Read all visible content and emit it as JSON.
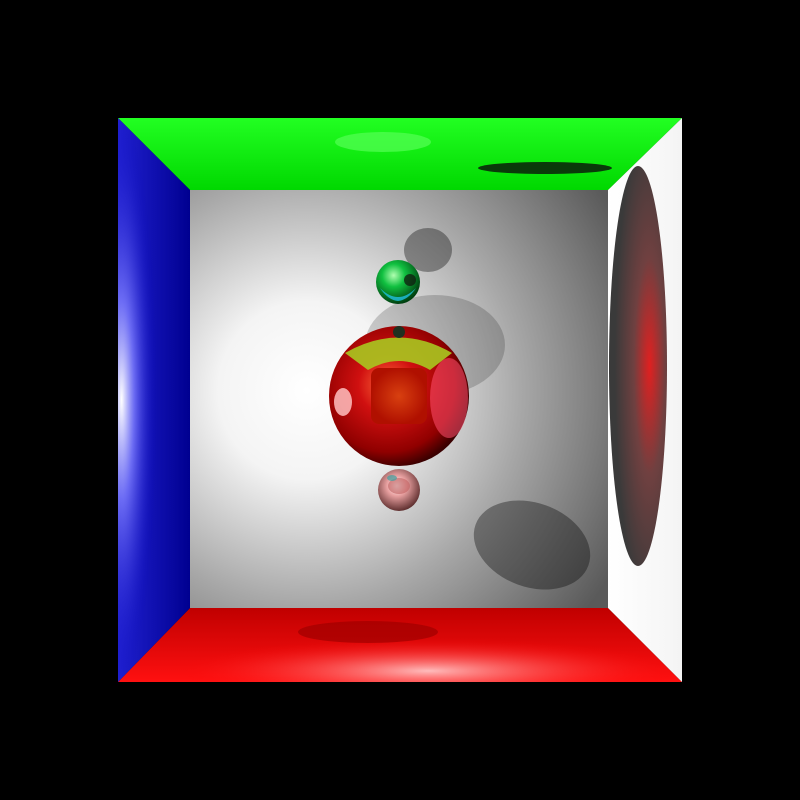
{
  "scene": {
    "description": "",
    "colors": {
      "background": "#000000",
      "back_wall": "#ffffff",
      "ceiling": "#00ff00",
      "floor": "#ff2020",
      "left_wall": "#1010c0",
      "right_wall": "#ffffff",
      "large_sphere": "#ff1a1a",
      "small_sphere_top": "#30ff60",
      "small_sphere_bottom": "#ffb0b0"
    }
  }
}
